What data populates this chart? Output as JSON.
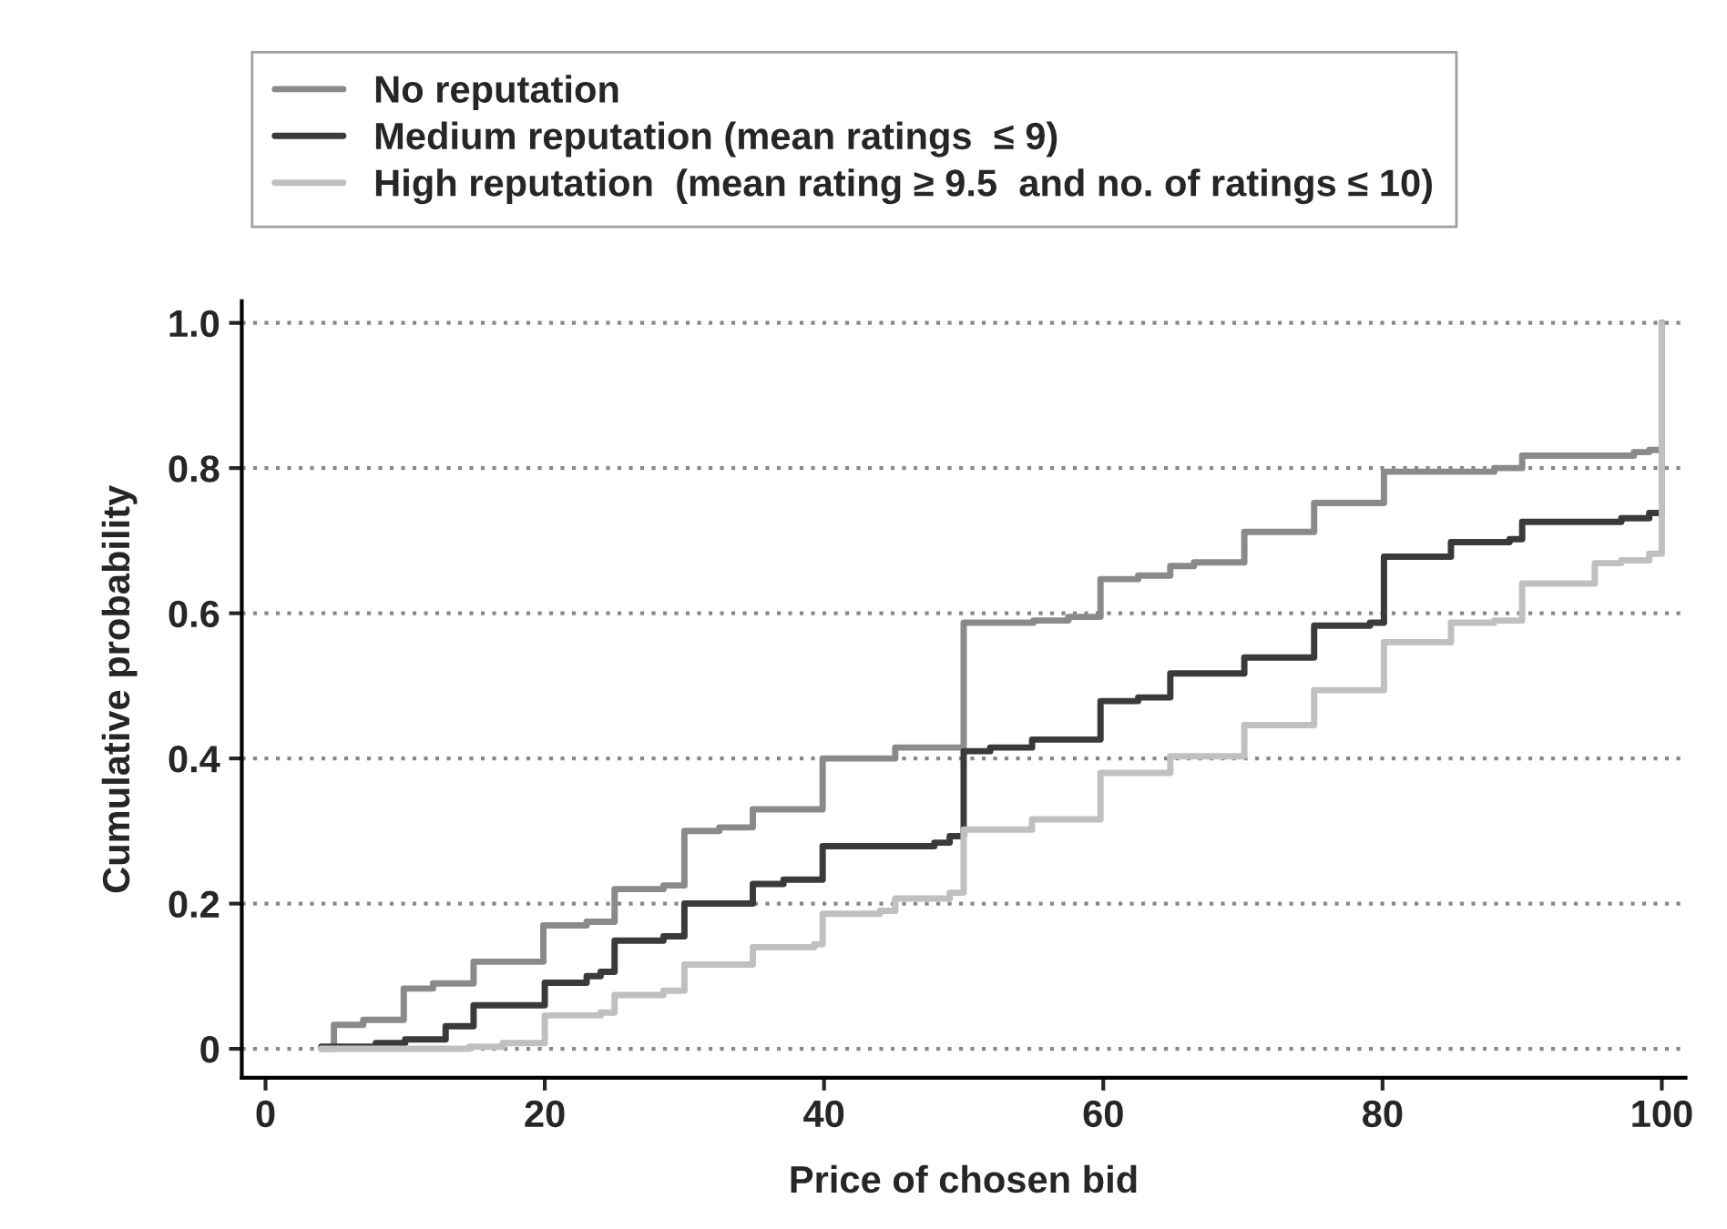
{
  "chart_data": {
    "type": "step",
    "xlabel": "Price of chosen bid",
    "ylabel": "Cumulative probability",
    "xlim": [
      -1.7,
      101.7
    ],
    "ylim": [
      -0.04,
      1.03
    ],
    "xticks": [
      0,
      20,
      40,
      60,
      80,
      100
    ],
    "yticks": [
      0,
      {
        "value": 0.2,
        "label": "0.2"
      },
      {
        "value": 0.4,
        "label": "0.4"
      },
      {
        "value": 0.6,
        "label": "0.6"
      },
      {
        "value": 0.8,
        "label": "0.8"
      },
      {
        "value": 1.0,
        "label": "1.0"
      }
    ],
    "grid": "y",
    "legend": "top",
    "line_style": "solid",
    "marker": "none",
    "series": [
      {
        "name": "No reputation",
        "color": "#8a8a8a",
        "x": [
          4,
          4.9,
          7,
          9.9,
          12,
          14.9,
          19.9,
          23,
          25,
          28.5,
          30,
          32.5,
          34.9,
          39.9,
          45.1,
          50,
          55,
          57.5,
          59.8,
          62.5,
          64.8,
          66.5,
          70.1,
          75.1,
          80.1,
          88,
          90,
          98,
          99.1,
          100
        ],
        "values": [
          0,
          0.033,
          0.04,
          0.083,
          0.09,
          0.12,
          0.17,
          0.175,
          0.22,
          0.225,
          0.3,
          0.305,
          0.33,
          0.4,
          0.415,
          0.587,
          0.59,
          0.595,
          0.647,
          0.652,
          0.665,
          0.67,
          0.712,
          0.752,
          0.795,
          0.8,
          0.817,
          0.822,
          0.825,
          1.0
        ]
      },
      {
        "name": "Medium reputation (mean ratings  ≤ 9)",
        "color": "#3a3a3a",
        "x": [
          4,
          7.9,
          10,
          12.9,
          14.9,
          20,
          23,
          24,
          25,
          28.5,
          30,
          34.9,
          37.1,
          39.9,
          47.9,
          49,
          50,
          51.9,
          54.9,
          59.8,
          62.5,
          64.8,
          70.1,
          75.1,
          79.1,
          80.1,
          84.9,
          89.1,
          90,
          97.1,
          99.1,
          100
        ],
        "values": [
          0.003,
          0.008,
          0.013,
          0.031,
          0.06,
          0.091,
          0.1,
          0.106,
          0.149,
          0.155,
          0.2,
          0.227,
          0.233,
          0.279,
          0.284,
          0.293,
          0.41,
          0.415,
          0.426,
          0.479,
          0.484,
          0.517,
          0.539,
          0.583,
          0.587,
          0.678,
          0.698,
          0.702,
          0.726,
          0.731,
          0.738,
          1.0
        ]
      },
      {
        "name": "High reputation  (mean rating ≥ 9.5  and no. of ratings ≤ 10)",
        "color": "#c0c0c0",
        "x": [
          4,
          14.6,
          17,
          20,
          24,
          25,
          28.5,
          30,
          34.9,
          39.3,
          39.9,
          44,
          45.1,
          49,
          50,
          54.9,
          59.8,
          64.8,
          70.1,
          75.1,
          80.1,
          84.9,
          88,
          90,
          95.2,
          97.1,
          99.1,
          100
        ],
        "values": [
          0,
          0.003,
          0.008,
          0.046,
          0.05,
          0.074,
          0.08,
          0.116,
          0.14,
          0.144,
          0.186,
          0.19,
          0.207,
          0.215,
          0.302,
          0.316,
          0.38,
          0.403,
          0.446,
          0.494,
          0.56,
          0.587,
          0.59,
          0.641,
          0.669,
          0.673,
          0.682,
          1.0
        ]
      }
    ]
  }
}
